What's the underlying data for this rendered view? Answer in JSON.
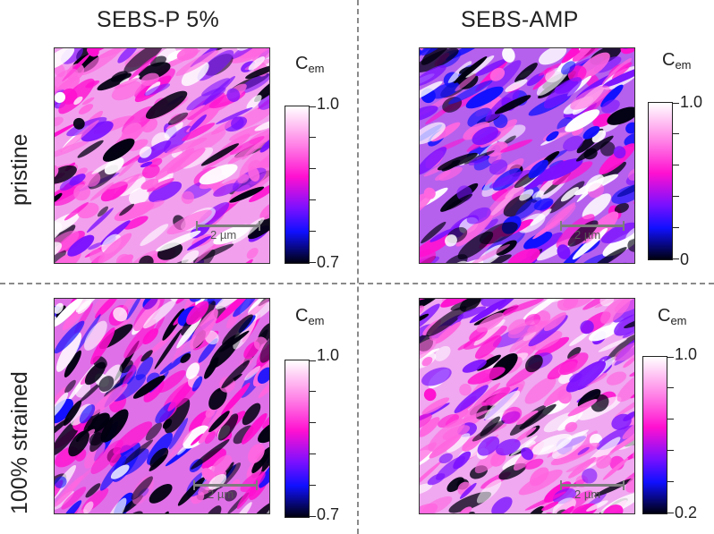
{
  "columns": [
    "SEBS-P 5%",
    "SEBS-AMP"
  ],
  "rows": [
    "pristine",
    "100% strained"
  ],
  "scalebar_label": "2 µm",
  "colorbar_symbol": "C",
  "colorbar_subscript": "em",
  "panels": [
    {
      "id": "p5-pristine",
      "cb_max": "1.0",
      "cb_min": "0.7"
    },
    {
      "id": "amp-pristine",
      "cb_max": "1.0",
      "cb_min": "0"
    },
    {
      "id": "p5-strained",
      "cb_max": "1.0",
      "cb_min": "0.7"
    },
    {
      "id": "amp-strained",
      "cb_max": "1.0",
      "cb_min": "0.2"
    }
  ],
  "colors": {
    "white": "#ffffff",
    "pink": "#ff66e0",
    "magenta": "#ff10d0",
    "violet": "#7a10ff",
    "blue": "#1010ff",
    "black": "#000010"
  }
}
